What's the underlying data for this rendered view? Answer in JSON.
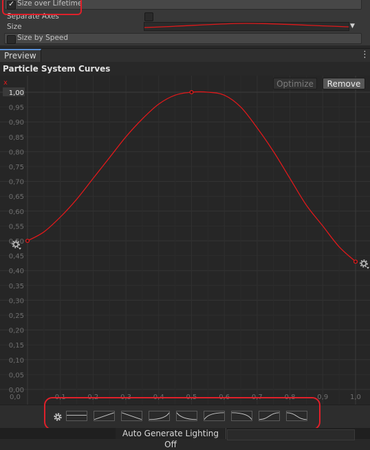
{
  "inspector": {
    "size_over_lifetime_label": "Size over Lifetime",
    "size_over_lifetime_checked": true,
    "separate_axes_label": "Separate Axes",
    "size_label": "Size",
    "size_by_speed_label": "Size by Speed",
    "size_by_speed_checked": false
  },
  "preview_bar": {
    "tab_label": "Preview",
    "menu_icon": "kebab-menu-icon"
  },
  "curves_panel": {
    "title": "Particle System Curves",
    "optimize_label": "Optimize",
    "remove_label": "Remove",
    "axis_marker": "x",
    "curve_color": "#e0191b"
  },
  "chart_data": {
    "type": "line",
    "title": "",
    "xlabel": "",
    "ylabel": "",
    "xlim": [
      0.0,
      1.0
    ],
    "ylim": [
      0.0,
      1.0
    ],
    "grid": true,
    "x_ticks": [
      "0,0",
      "0,1",
      "0,2",
      "0,3",
      "0,4",
      "0,5",
      "0,6",
      "0,7",
      "0,8",
      "0,9",
      "1,0"
    ],
    "y_ticks": [
      "0,00",
      "0,05",
      "0,10",
      "0,15",
      "0,20",
      "0,25",
      "0,30",
      "0,35",
      "0,40",
      "0,45",
      "0,50",
      "0,55",
      "0,60",
      "0,65",
      "0,70",
      "0,75",
      "0,80",
      "0,85",
      "0,90",
      "0,95",
      "1,00"
    ],
    "keys": [
      {
        "x": 0.0,
        "y": 0.5
      },
      {
        "x": 0.5,
        "y": 1.0
      },
      {
        "x": 1.0,
        "y": 0.43
      }
    ],
    "curve": [
      {
        "x": 0.0,
        "y": 0.5
      },
      {
        "x": 0.05,
        "y": 0.53
      },
      {
        "x": 0.1,
        "y": 0.58
      },
      {
        "x": 0.15,
        "y": 0.64
      },
      {
        "x": 0.2,
        "y": 0.71
      },
      {
        "x": 0.25,
        "y": 0.78
      },
      {
        "x": 0.3,
        "y": 0.85
      },
      {
        "x": 0.35,
        "y": 0.91
      },
      {
        "x": 0.4,
        "y": 0.96
      },
      {
        "x": 0.45,
        "y": 0.99
      },
      {
        "x": 0.5,
        "y": 1.0
      },
      {
        "x": 0.55,
        "y": 1.0
      },
      {
        "x": 0.6,
        "y": 0.99
      },
      {
        "x": 0.65,
        "y": 0.95
      },
      {
        "x": 0.7,
        "y": 0.88
      },
      {
        "x": 0.75,
        "y": 0.8
      },
      {
        "x": 0.8,
        "y": 0.71
      },
      {
        "x": 0.85,
        "y": 0.62
      },
      {
        "x": 0.9,
        "y": 0.55
      },
      {
        "x": 0.95,
        "y": 0.48
      },
      {
        "x": 1.0,
        "y": 0.43
      }
    ]
  },
  "presets": {
    "settings_icon": "gear-icon",
    "items": [
      "constant",
      "linear-up",
      "linear-down",
      "ease-in",
      "ease-out-down",
      "ease-out-up",
      "ease-in-down",
      "ease-in-out-up",
      "ease-in-out-down"
    ]
  },
  "status": {
    "auto_generate_lighting": "Auto Generate Lighting Off"
  }
}
